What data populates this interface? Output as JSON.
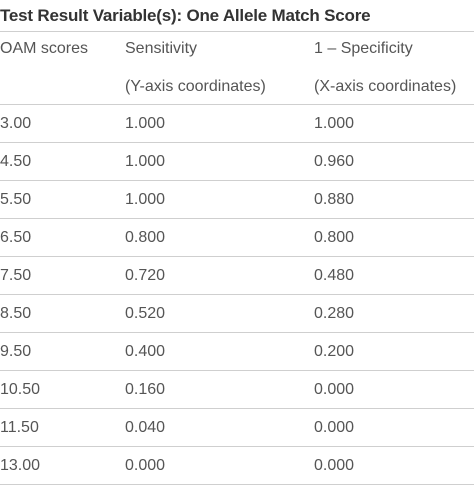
{
  "title": "Test Result Variable(s): One Allele Match Score",
  "header": {
    "col1": "OAM scores",
    "col2_line1": "Sensitivity",
    "col2_line2": "(Y-axis coordinates)",
    "col3_line1": "1 – Specificity",
    "col3_line2": "(X-axis coordinates)"
  },
  "rows": [
    {
      "oam": "3.00",
      "sensitivity": "1.000",
      "one_minus_specificity": "1.000"
    },
    {
      "oam": "4.50",
      "sensitivity": "1.000",
      "one_minus_specificity": "0.960"
    },
    {
      "oam": "5.50",
      "sensitivity": "1.000",
      "one_minus_specificity": "0.880"
    },
    {
      "oam": "6.50",
      "sensitivity": "0.800",
      "one_minus_specificity": "0.800"
    },
    {
      "oam": "7.50",
      "sensitivity": "0.720",
      "one_minus_specificity": "0.480"
    },
    {
      "oam": "8.50",
      "sensitivity": "0.520",
      "one_minus_specificity": "0.280"
    },
    {
      "oam": "9.50",
      "sensitivity": "0.400",
      "one_minus_specificity": "0.200"
    },
    {
      "oam": "10.50",
      "sensitivity": "0.160",
      "one_minus_specificity": "0.000"
    },
    {
      "oam": "11.50",
      "sensitivity": "0.040",
      "one_minus_specificity": "0.000"
    },
    {
      "oam": "13.00",
      "sensitivity": "0.000",
      "one_minus_specificity": "0.000"
    }
  ]
}
